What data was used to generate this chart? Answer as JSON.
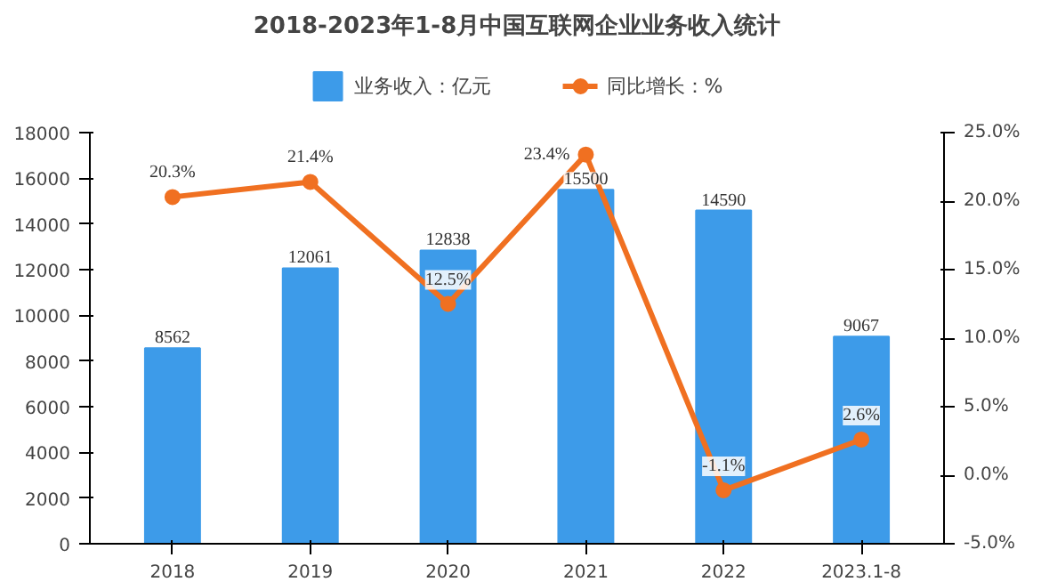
{
  "chart_data": {
    "type": "bar",
    "title": "2018-2023年1-8月中国互联网企业业务收入统计",
    "categories": [
      "2018",
      "2019",
      "2020",
      "2021",
      "2022",
      "2023.1-8"
    ],
    "series": [
      {
        "name": "业务收入：亿元",
        "type": "bar",
        "color": "#3d9be9",
        "values": [
          8562,
          12061,
          12838,
          15500,
          14590,
          9067
        ],
        "value_labels": [
          "8562",
          "12061",
          "12838",
          "15500",
          "14590",
          "9067"
        ]
      },
      {
        "name": "同比增长：%",
        "type": "line",
        "axis": "y2",
        "color": "#f07021",
        "values": [
          20.3,
          21.4,
          12.5,
          23.4,
          -1.1,
          2.6
        ],
        "value_labels": [
          "20.3%",
          "21.4%",
          "12.5%",
          "23.4%",
          "-1.1%",
          "2.6%"
        ]
      }
    ],
    "ylim": [
      0,
      18000
    ],
    "yticks": [
      0,
      2000,
      4000,
      6000,
      8000,
      10000,
      12000,
      14000,
      16000,
      18000
    ],
    "y2lim": [
      -5,
      25
    ],
    "y2ticks": [
      {
        "value": -5,
        "label": "-5.0%"
      },
      {
        "value": 0,
        "label": "0.0%"
      },
      {
        "value": 5,
        "label": "5.0%"
      },
      {
        "value": 10,
        "label": "10.0%"
      },
      {
        "value": 15,
        "label": "15.0%"
      },
      {
        "value": 20,
        "label": "20.0%"
      },
      {
        "value": 25,
        "label": "25.0%"
      }
    ],
    "legend": "top",
    "marker": "circle",
    "grid": false
  }
}
